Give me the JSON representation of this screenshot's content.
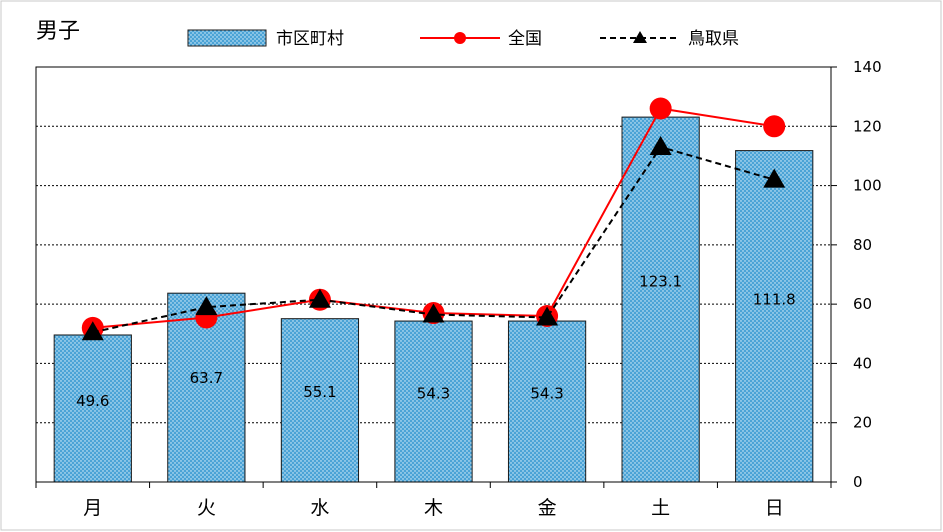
{
  "chart_data": {
    "type": "bar",
    "title": "男子",
    "categories": [
      "月",
      "火",
      "水",
      "木",
      "金",
      "土",
      "日"
    ],
    "series": [
      {
        "name": "市区町村",
        "kind": "bar",
        "values": [
          49.6,
          63.7,
          55.1,
          54.3,
          54.3,
          123.1,
          111.8
        ],
        "color": "#4BA3D6"
      },
      {
        "name": "全国",
        "kind": "line",
        "values": [
          52.0,
          55.5,
          61.5,
          57.0,
          56.0,
          126.0,
          120.0
        ],
        "color": "#FF0000"
      },
      {
        "name": "鳥取県",
        "kind": "line",
        "values": [
          50.5,
          59.0,
          61.5,
          56.5,
          55.5,
          113.0,
          102.0
        ],
        "color": "#000000"
      }
    ],
    "ylim": [
      0,
      140
    ],
    "yticks": [
      0,
      20,
      40,
      60,
      80,
      100,
      120,
      140
    ],
    "y_axis_side": "right",
    "grid": true,
    "legend_position": "top"
  }
}
